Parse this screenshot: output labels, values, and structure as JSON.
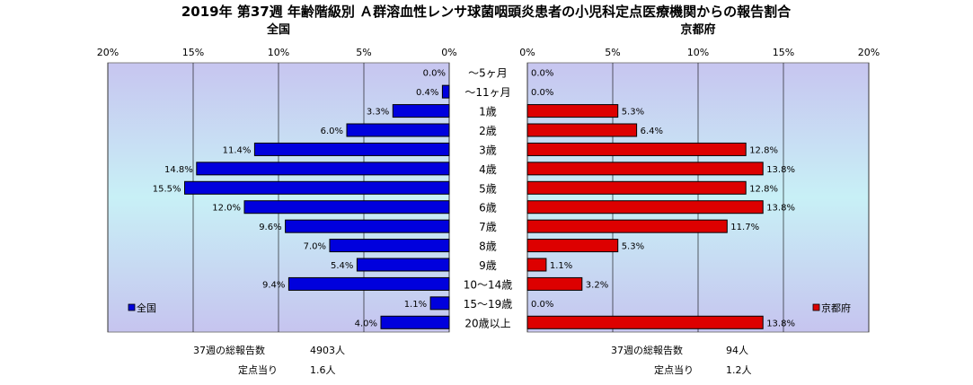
{
  "chart_data": {
    "type": "bar",
    "title": "2019年 第37週 年齢階級別 Ａ群溶血性レンサ球菌咽頭炎患者の小児科定点医療機関からの報告割合",
    "categories": [
      "～5ヶ月",
      "～11ヶ月",
      "1歳",
      "2歳",
      "3歳",
      "4歳",
      "5歳",
      "6歳",
      "7歳",
      "8歳",
      "9歳",
      "10～14歳",
      "15～19歳",
      "20歳以上"
    ],
    "xlim": [
      0,
      20
    ],
    "ticks": [
      "20%",
      "15%",
      "10%",
      "5%",
      "0%"
    ],
    "ticks_right": [
      "0%",
      "5%",
      "10%",
      "15%",
      "20%"
    ],
    "grid": true,
    "legend_position": "bottom-left / bottom-right",
    "panels": [
      {
        "name": "全国",
        "color": "#0000dd",
        "values": [
          0.0,
          0.4,
          3.3,
          6.0,
          11.4,
          14.8,
          15.5,
          12.0,
          9.6,
          7.0,
          5.4,
          9.4,
          1.1,
          4.0
        ],
        "labels": [
          "0.0%",
          "0.4%",
          "3.3%",
          "6.0%",
          "11.4%",
          "14.8%",
          "15.5%",
          "12.0%",
          "9.6%",
          "7.0%",
          "5.4%",
          "9.4%",
          "1.1%",
          "4.0%"
        ],
        "legend": "全国",
        "footer": [
          {
            "label": "37週の総報告数",
            "value": "4903人"
          },
          {
            "label": "定点当り",
            "value": "1.6人"
          }
        ]
      },
      {
        "name": "京都府",
        "color": "#dd0000",
        "values": [
          0.0,
          0.0,
          5.3,
          6.4,
          12.8,
          13.8,
          12.8,
          13.8,
          11.7,
          5.3,
          1.1,
          3.2,
          0.0,
          13.8
        ],
        "labels": [
          "0.0%",
          "0.0%",
          "5.3%",
          "6.4%",
          "12.8%",
          "13.8%",
          "12.8%",
          "13.8%",
          "11.7%",
          "5.3%",
          "1.1%",
          "3.2%",
          "0.0%",
          "13.8%"
        ],
        "legend": "京都府",
        "footer": [
          {
            "label": "37週の総報告数",
            "value": "94人"
          },
          {
            "label": "定点当り",
            "value": "1.2人"
          }
        ]
      }
    ]
  }
}
